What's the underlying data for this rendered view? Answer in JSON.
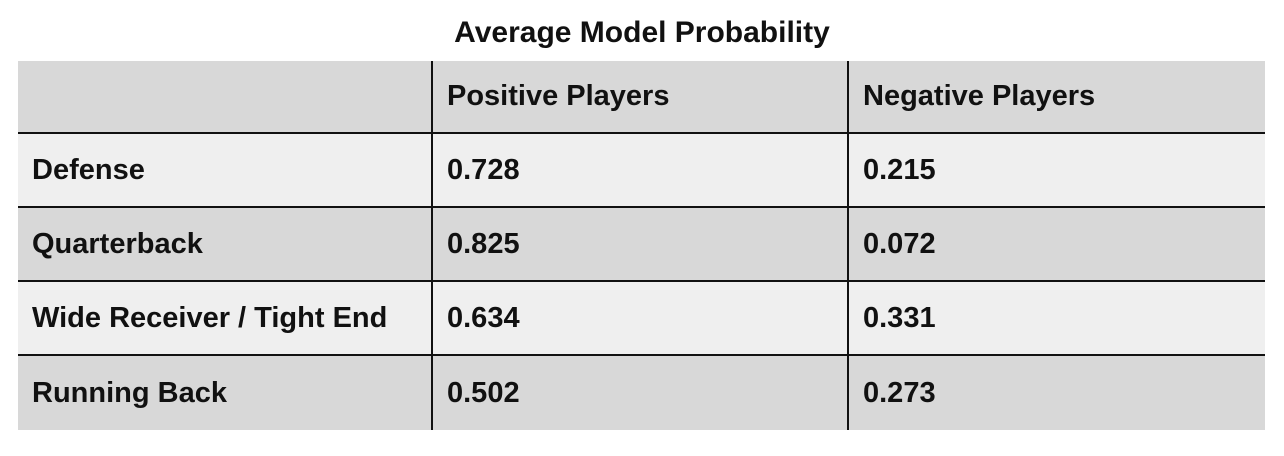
{
  "chart_data": {
    "type": "table",
    "title": "Average Model Probability",
    "columns": [
      "",
      "Positive Players",
      "Negative Players"
    ],
    "rows": [
      {
        "label": "Defense",
        "values": [
          "0.728",
          "0.215"
        ]
      },
      {
        "label": "Quarterback",
        "values": [
          "0.825",
          "0.072"
        ]
      },
      {
        "label": "Wide Receiver / Tight End",
        "values": [
          "0.634",
          "0.331"
        ]
      },
      {
        "label": "Running Back",
        "values": [
          "0.502",
          "0.273"
        ]
      }
    ]
  },
  "colors": {
    "header_bg": "#d8d8d8",
    "row_light_bg": "#efefef",
    "row_dark_bg": "#d8d8d8",
    "border": "#111111"
  }
}
